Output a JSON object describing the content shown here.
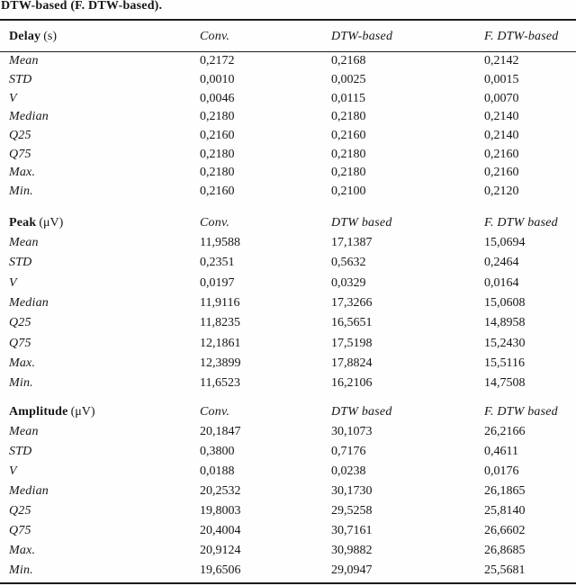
{
  "caption": "DTW-based (F. DTW-based).",
  "sections": [
    {
      "label": "Delay",
      "unit": "(s)",
      "columns": [
        "Conv.",
        "DTW-based",
        "F. DTW-based"
      ],
      "rows": [
        {
          "label": "Mean",
          "values": [
            "0,2172",
            "0,2168",
            "0,2142"
          ]
        },
        {
          "label": "STD",
          "values": [
            "0,0010",
            "0,0025",
            "0,0015"
          ]
        },
        {
          "label": "V",
          "values": [
            "0,0046",
            "0,0115",
            "0,0070"
          ]
        },
        {
          "label": "Median",
          "values": [
            "0,2180",
            "0,2180",
            "0,2140"
          ]
        },
        {
          "label": "Q25",
          "values": [
            "0,2160",
            "0,2160",
            "0,2140"
          ]
        },
        {
          "label": "Q75",
          "values": [
            "0,2180",
            "0,2180",
            "0,2160"
          ]
        },
        {
          "label": "Max.",
          "values": [
            "0,2180",
            "0,2180",
            "0,2160"
          ]
        },
        {
          "label": "Min.",
          "values": [
            "0,2160",
            "0,2100",
            "0,2120"
          ]
        }
      ]
    },
    {
      "label": "Peak",
      "unit": "(μV)",
      "columns": [
        "Conv.",
        "DTW based",
        "F. DTW based"
      ],
      "rows": [
        {
          "label": "Mean",
          "values": [
            "11,9588",
            "17,1387",
            "15,0694"
          ]
        },
        {
          "label": "STD",
          "values": [
            "0,2351",
            "0,5632",
            "0,2464"
          ]
        },
        {
          "label": "V",
          "values": [
            "0,0197",
            "0,0329",
            "0,0164"
          ]
        },
        {
          "label": "Median",
          "values": [
            "11,9116",
            "17,3266",
            "15,0608"
          ]
        },
        {
          "label": "Q25",
          "values": [
            "11,8235",
            "16,5651",
            "14,8958"
          ]
        },
        {
          "label": "Q75",
          "values": [
            "12,1861",
            "17,5198",
            "15,2430"
          ]
        },
        {
          "label": "Max.",
          "values": [
            "12,3899",
            "17,8824",
            "15,5116"
          ]
        },
        {
          "label": "Min.",
          "values": [
            "11,6523",
            "16,2106",
            "14,7508"
          ]
        }
      ]
    },
    {
      "label": "Amplitude",
      "unit": "(μV)",
      "columns": [
        "Conv.",
        "DTW based",
        "F. DTW based"
      ],
      "rows": [
        {
          "label": "Mean",
          "values": [
            "20,1847",
            "30,1073",
            "26,2166"
          ]
        },
        {
          "label": "STD",
          "values": [
            "0,3800",
            "0,7176",
            "0,4611"
          ]
        },
        {
          "label": "V",
          "values": [
            "0,0188",
            "0,0238",
            "0,0176"
          ]
        },
        {
          "label": "Median",
          "values": [
            "20,2532",
            "30,1730",
            "26,1865"
          ]
        },
        {
          "label": "Q25",
          "values": [
            "19,8003",
            "29,5258",
            "25,8140"
          ]
        },
        {
          "label": "Q75",
          "values": [
            "20,4004",
            "30,7161",
            "26,6602"
          ]
        },
        {
          "label": "Max.",
          "values": [
            "20,9124",
            "30,9882",
            "26,8685"
          ]
        },
        {
          "label": "Min.",
          "values": [
            "19,6506",
            "29,0947",
            "25,5681"
          ]
        }
      ]
    }
  ]
}
